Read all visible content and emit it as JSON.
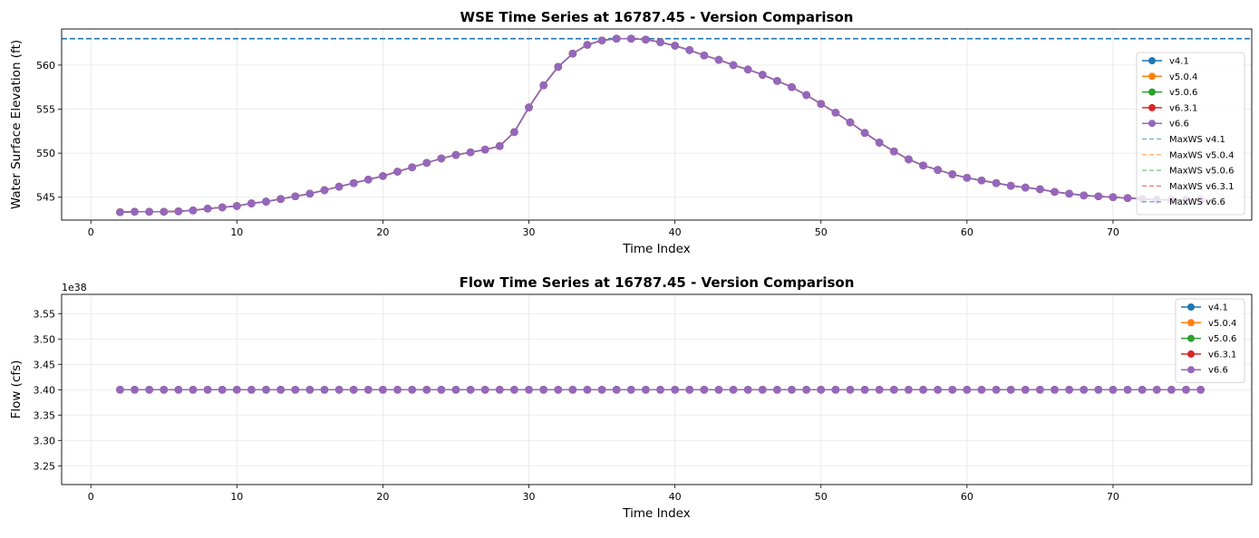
{
  "chart_data": [
    {
      "type": "line",
      "title": "WSE Time Series at 16787.45 - Version Comparison",
      "xlabel": "Time Index",
      "ylabel": "Water Surface Elevation (ft)",
      "xlim": [
        -2,
        79.5
      ],
      "ylim": [
        542.4,
        564.1
      ],
      "xticks": [
        0,
        10,
        20,
        30,
        40,
        50,
        60,
        70
      ],
      "yticks": [
        545,
        550,
        555,
        560
      ],
      "grid": true,
      "legend_position": "right",
      "x": [
        2,
        3,
        4,
        5,
        6,
        7,
        8,
        9,
        10,
        11,
        12,
        13,
        14,
        15,
        16,
        17,
        18,
        19,
        20,
        21,
        22,
        23,
        24,
        25,
        26,
        27,
        28,
        29,
        30,
        31,
        32,
        33,
        34,
        35,
        36,
        37,
        38,
        39,
        40,
        41,
        42,
        43,
        44,
        45,
        46,
        47,
        48,
        49,
        50,
        51,
        52,
        53,
        54,
        55,
        56,
        57,
        58,
        59,
        60,
        61,
        62,
        63,
        64,
        65,
        66,
        67,
        68,
        69,
        70,
        71,
        72,
        73,
        74,
        75,
        76
      ],
      "y": [
        543.3,
        543.35,
        543.35,
        543.35,
        543.4,
        543.5,
        543.7,
        543.85,
        544.0,
        544.3,
        544.5,
        544.8,
        545.1,
        545.4,
        545.8,
        546.2,
        546.6,
        547.0,
        547.4,
        547.9,
        548.4,
        548.9,
        549.4,
        549.8,
        550.1,
        550.4,
        550.8,
        552.4,
        555.2,
        557.7,
        559.8,
        561.3,
        562.3,
        562.8,
        563.0,
        563.0,
        562.9,
        562.6,
        562.2,
        561.7,
        561.1,
        560.6,
        560.0,
        559.5,
        558.9,
        558.2,
        557.5,
        556.6,
        555.6,
        554.6,
        553.5,
        552.3,
        551.2,
        550.2,
        549.3,
        548.6,
        548.1,
        547.6,
        547.2,
        546.9,
        546.6,
        546.3,
        546.1,
        545.9,
        545.6,
        545.4,
        545.2,
        545.1,
        545.0,
        544.9,
        544.8,
        544.7,
        544.7,
        544.7,
        544.7
      ],
      "series": [
        {
          "name": "v4.1",
          "color": "#1f77b4",
          "style": "line-marker"
        },
        {
          "name": "v5.0.4",
          "color": "#ff7f0e",
          "style": "line-marker"
        },
        {
          "name": "v5.0.6",
          "color": "#2ca02c",
          "style": "line-marker"
        },
        {
          "name": "v6.3.1",
          "color": "#d62728",
          "style": "line-marker"
        },
        {
          "name": "v6.6",
          "color": "#9467bd",
          "style": "line-marker"
        }
      ],
      "hlines": [
        {
          "name": "MaxWS v4.1",
          "value": 563.0,
          "color": "#1f77b4"
        },
        {
          "name": "MaxWS v5.0.4",
          "value": 563.0,
          "color": "#ff7f0e"
        },
        {
          "name": "MaxWS v5.0.6",
          "value": 563.0,
          "color": "#2ca02c"
        },
        {
          "name": "MaxWS v6.3.1",
          "value": 563.0,
          "color": "#d62728"
        },
        {
          "name": "MaxWS v6.6",
          "value": 563.0,
          "color": "#1f77b4"
        }
      ]
    },
    {
      "type": "line",
      "title": "Flow Time Series at 16787.45 - Version Comparison",
      "xlabel": "Time Index",
      "ylabel": "Flow (cfs)",
      "offset_label": "1e38",
      "xlim": [
        -2,
        79.5
      ],
      "ylim": [
        3.213,
        3.588
      ],
      "xticks": [
        0,
        10,
        20,
        30,
        40,
        50,
        60,
        70
      ],
      "yticks": [
        3.25,
        3.3,
        3.35,
        3.4,
        3.45,
        3.5,
        3.55
      ],
      "grid": true,
      "legend_position": "top-right",
      "x": [
        2,
        3,
        4,
        5,
        6,
        7,
        8,
        9,
        10,
        11,
        12,
        13,
        14,
        15,
        16,
        17,
        18,
        19,
        20,
        21,
        22,
        23,
        24,
        25,
        26,
        27,
        28,
        29,
        30,
        31,
        32,
        33,
        34,
        35,
        36,
        37,
        38,
        39,
        40,
        41,
        42,
        43,
        44,
        45,
        46,
        47,
        48,
        49,
        50,
        51,
        52,
        53,
        54,
        55,
        56,
        57,
        58,
        59,
        60,
        61,
        62,
        63,
        64,
        65,
        66,
        67,
        68,
        69,
        70,
        71,
        72,
        73,
        74,
        75,
        76
      ],
      "y_constant": 3.4,
      "series": [
        {
          "name": "v4.1",
          "color": "#1f77b4"
        },
        {
          "name": "v5.0.4",
          "color": "#ff7f0e"
        },
        {
          "name": "v5.0.6",
          "color": "#2ca02c"
        },
        {
          "name": "v6.3.1",
          "color": "#d62728"
        },
        {
          "name": "v6.6",
          "color": "#9467bd"
        }
      ]
    }
  ]
}
